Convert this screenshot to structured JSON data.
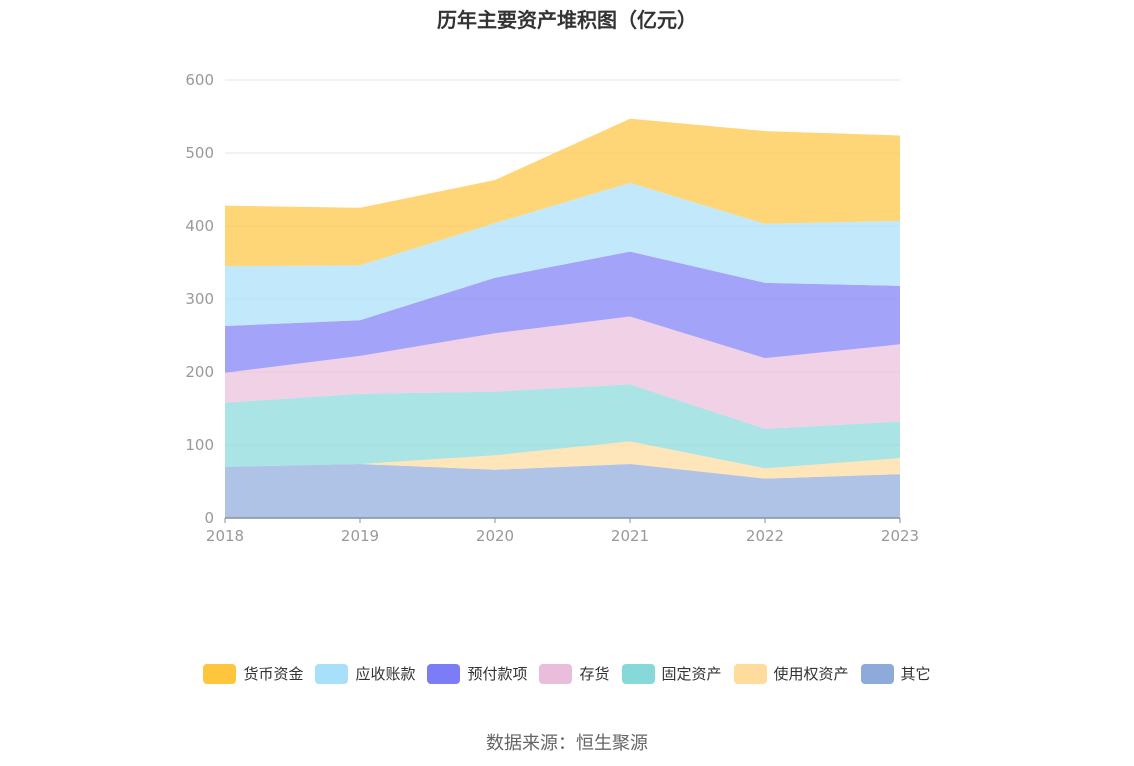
{
  "chart_data": {
    "type": "area",
    "stacked": true,
    "title": "历年主要资产堆积图（亿元）",
    "xlabel": "",
    "ylabel": "",
    "x": [
      "2018",
      "2019",
      "2020",
      "2021",
      "2022",
      "2023"
    ],
    "ylim": [
      0,
      600
    ],
    "yticks": [
      "0",
      "100",
      "200",
      "300",
      "400",
      "500",
      "600"
    ],
    "grid": true,
    "legend_position": "bottom",
    "series": [
      {
        "name": "其它",
        "color": "#8DAADB",
        "values": [
          70,
          74,
          66,
          74,
          54,
          60
        ]
      },
      {
        "name": "使用权资产",
        "color": "#FFDB9C",
        "values": [
          0,
          0,
          20,
          31,
          14,
          22
        ]
      },
      {
        "name": "固定资产",
        "color": "#86D8D9",
        "values": [
          88,
          96,
          87,
          78,
          54,
          50
        ]
      },
      {
        "name": "存货",
        "color": "#EABEDB",
        "values": [
          41,
          52,
          80,
          93,
          97,
          106
        ]
      },
      {
        "name": "预付款项",
        "color": "#7C7CF7",
        "values": [
          64,
          49,
          76,
          89,
          103,
          80
        ]
      },
      {
        "name": "应收账款",
        "color": "#A8E0FA",
        "values": [
          82,
          75,
          75,
          94,
          81,
          89
        ]
      },
      {
        "name": "货币资金",
        "color": "#FFC53D",
        "values": [
          83,
          79,
          59,
          88,
          127,
          117
        ]
      }
    ]
  },
  "legend_order": [
    "货币资金",
    "应收账款",
    "预付款项",
    "存货",
    "固定资产",
    "使用权资产",
    "其它"
  ],
  "legend_colors": [
    "#FFC53D",
    "#A8E0FA",
    "#7C7CF7",
    "#EABEDB",
    "#86D8D9",
    "#FFDB9C",
    "#8DAADB"
  ],
  "source": "数据来源：恒生聚源"
}
